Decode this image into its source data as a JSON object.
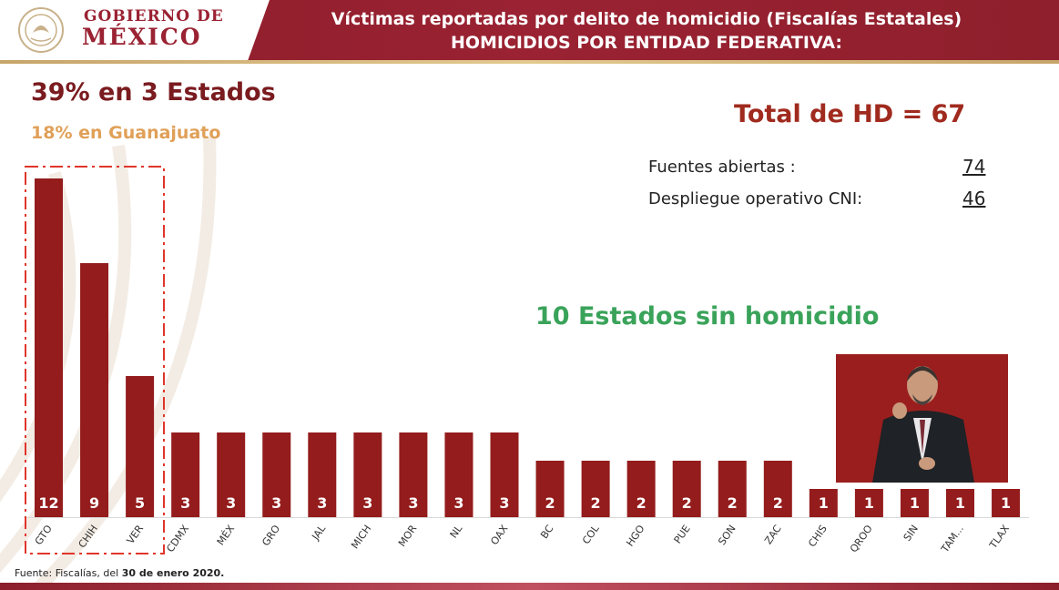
{
  "header": {
    "logo_line1": "GOBIERNO DE",
    "logo_line2": "MÉXICO",
    "title_line1": "Víctimas reportadas por delito de homicidio (Fiscalías Estatales)",
    "title_line2": "HOMICIDIOS POR ENTIDAD FEDERATIVA:"
  },
  "highlights": {
    "top3": "39% en 3 Estados",
    "guanajuato": "18% en Guanajuato",
    "total": "Total de HD = 67",
    "no_homicide": "10 Estados sin homicidio"
  },
  "sources": [
    {
      "label": "Fuentes abiertas :",
      "value": "74"
    },
    {
      "label": "Despliegue operativo CNI:",
      "value": "46"
    }
  ],
  "footnote": {
    "prefix": "Fuente: Fiscalías, del ",
    "date": "30 de enero 2020."
  },
  "colors": {
    "bar": "#941c1c",
    "bar_label": "#ffffff",
    "highlight_box": "#e0352b",
    "green": "#3aa35a"
  },
  "chart_data": {
    "type": "bar",
    "categories": [
      "GTO",
      "CHIH",
      "VER",
      "CDMX",
      "MÉX",
      "GRO",
      "JAL",
      "MICH",
      "MOR",
      "NL",
      "OAX",
      "BC",
      "COL",
      "HGO",
      "PUE",
      "SON",
      "ZAC",
      "CHIS",
      "QROO",
      "SIN",
      "TAM...",
      "TLAX"
    ],
    "values": [
      12,
      9,
      5,
      3,
      3,
      3,
      3,
      3,
      3,
      3,
      3,
      2,
      2,
      2,
      2,
      2,
      2,
      1,
      1,
      1,
      1,
      1
    ],
    "highlighted_categories": [
      "GTO",
      "CHIH",
      "VER"
    ],
    "ylim": [
      0,
      12
    ]
  }
}
